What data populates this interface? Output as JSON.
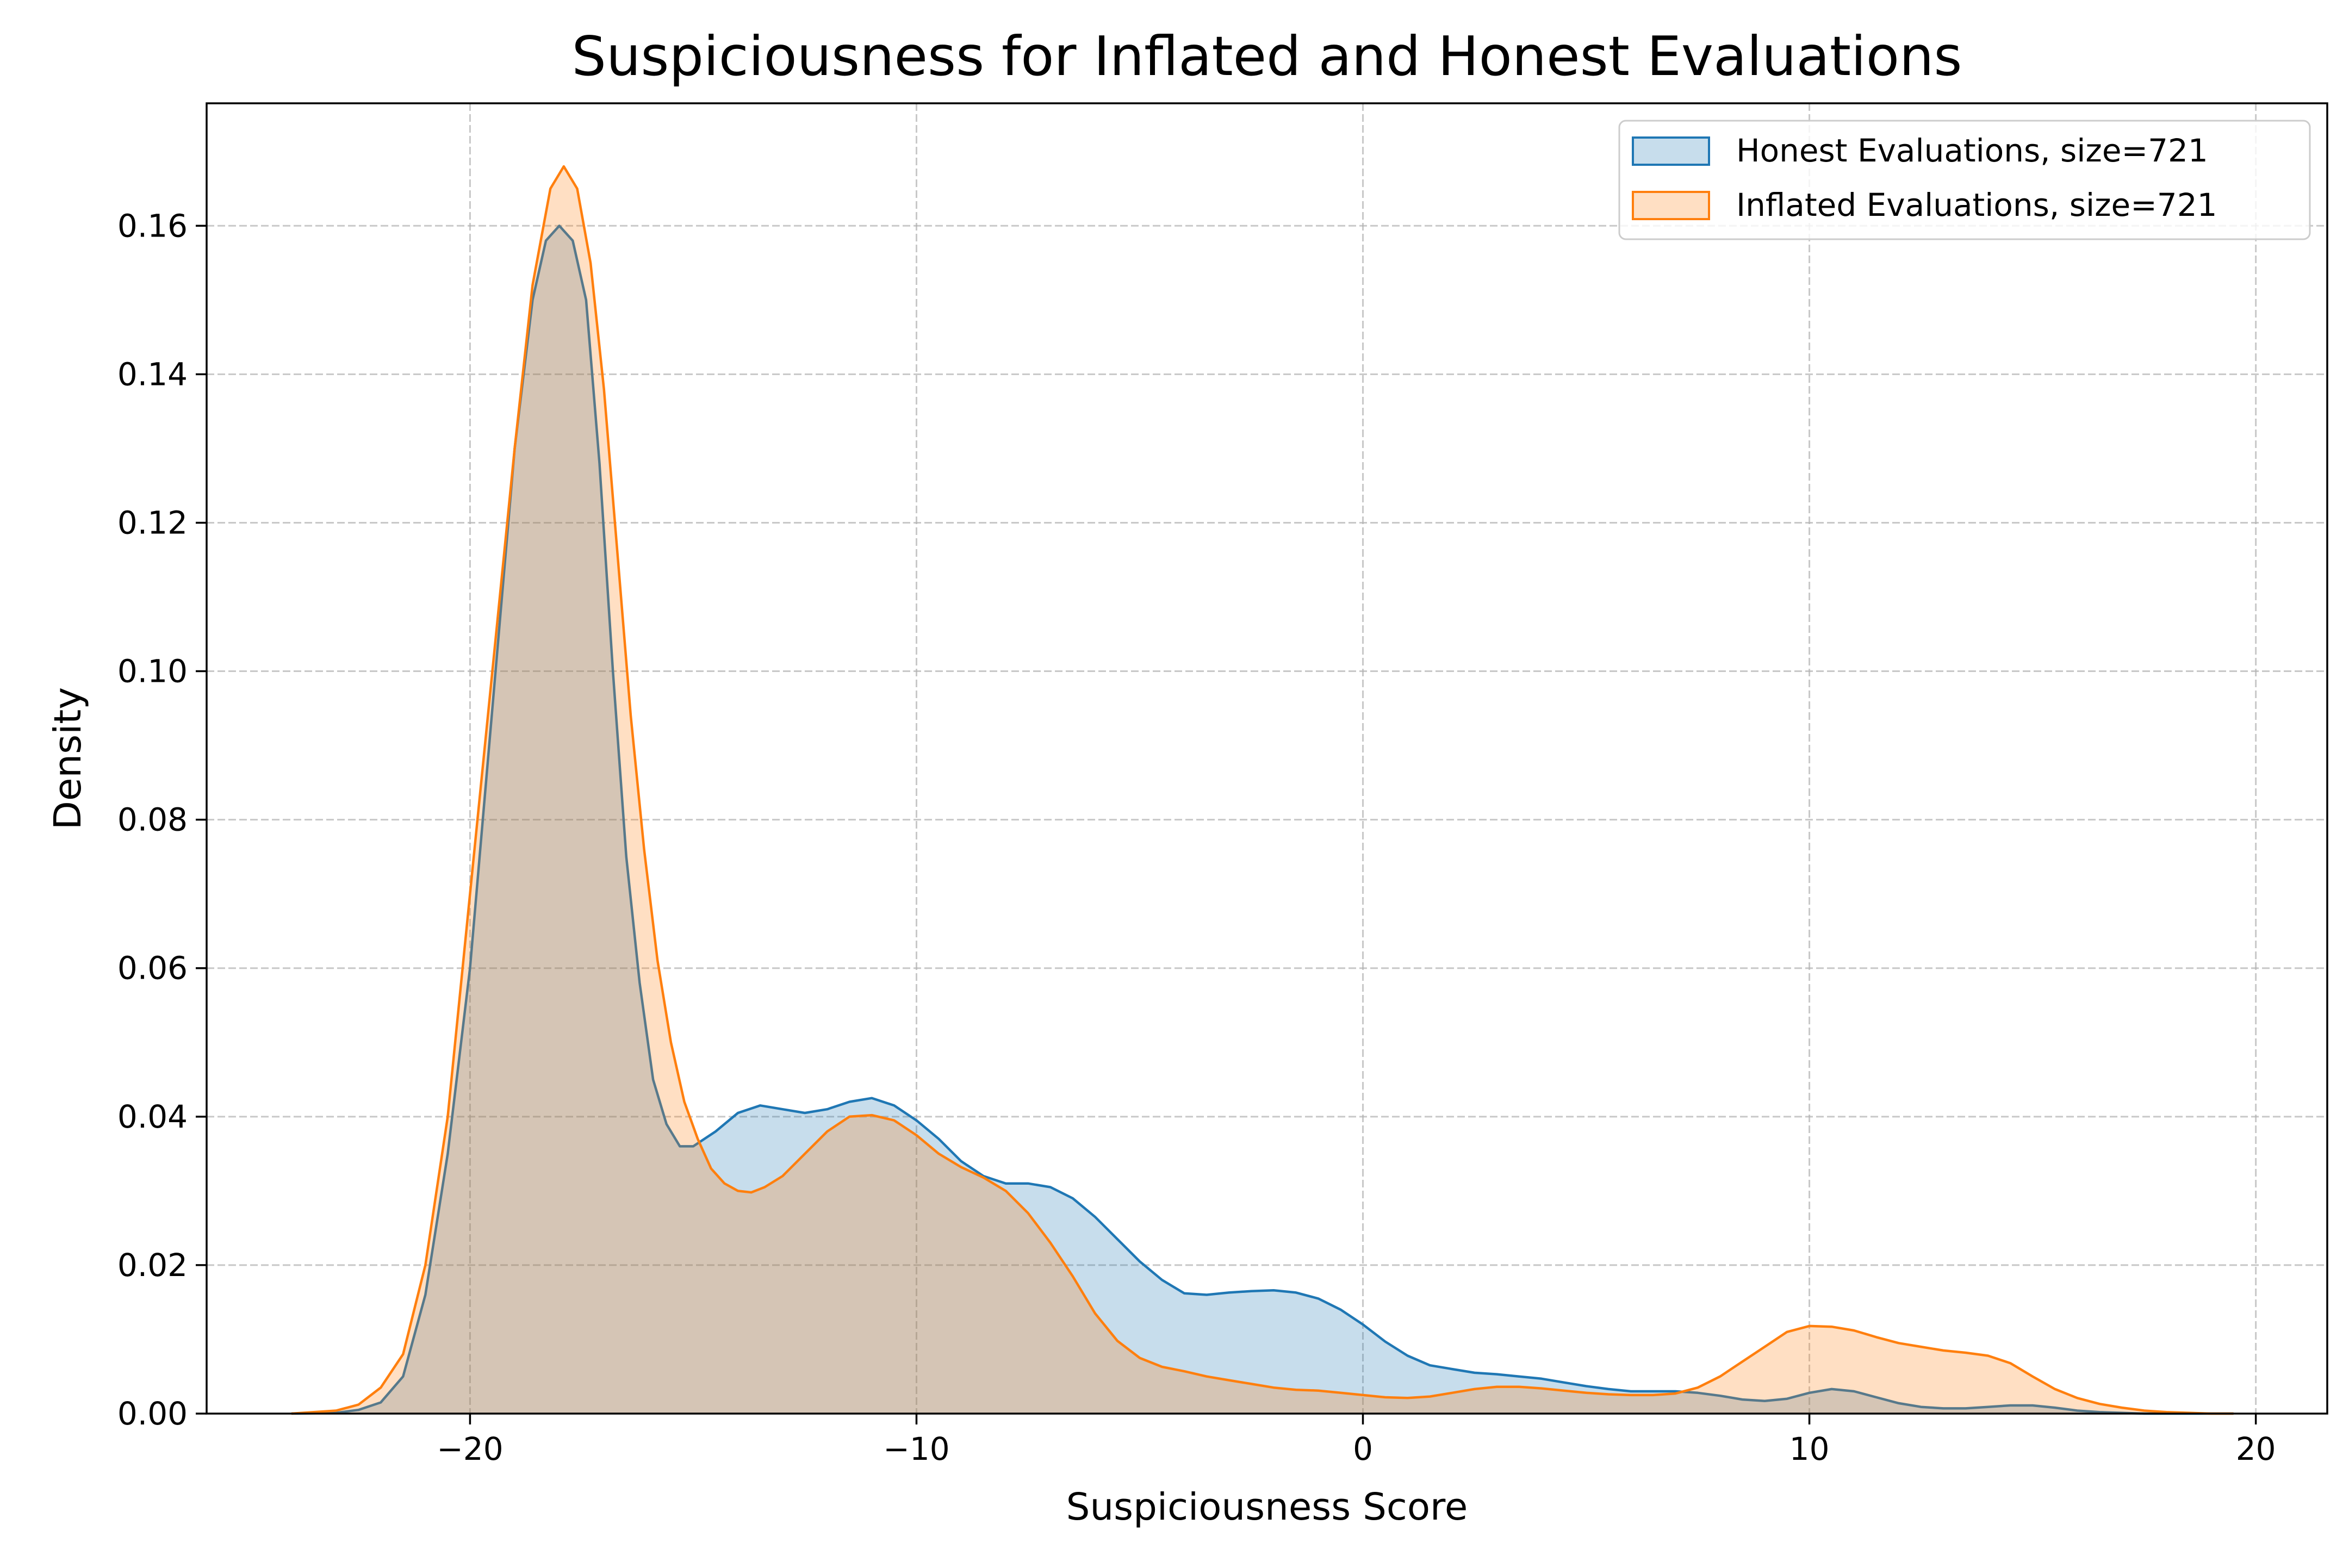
{
  "chart_data": {
    "type": "area",
    "title": "Suspiciousness for Inflated and Honest Evaluations",
    "xlabel": "Suspiciousness Score",
    "ylabel": "Density",
    "xlim": [
      -25.9,
      21.6
    ],
    "ylim": [
      0,
      0.1765
    ],
    "xticks": [
      {
        "value": -20,
        "label": "−20"
      },
      {
        "value": -10,
        "label": "−10"
      },
      {
        "value": 0,
        "label": "0"
      },
      {
        "value": 10,
        "label": "10"
      },
      {
        "value": 20,
        "label": "20"
      }
    ],
    "yticks": [
      {
        "value": 0,
        "label": "0.00"
      },
      {
        "value": 0.02,
        "label": "0.02"
      },
      {
        "value": 0.04,
        "label": "0.04"
      },
      {
        "value": 0.06,
        "label": "0.06"
      },
      {
        "value": 0.08,
        "label": "0.08"
      },
      {
        "value": 0.1,
        "label": "0.10"
      },
      {
        "value": 0.12,
        "label": "0.12"
      },
      {
        "value": 0.14,
        "label": "0.14"
      },
      {
        "value": 0.16,
        "label": "0.16"
      }
    ],
    "grid": true,
    "legend_position": "top-right",
    "series": [
      {
        "name": "Honest Evaluations, size=721",
        "color": "#1f77b4",
        "fill_opacity": 0.25,
        "x": [
          -24,
          -23,
          -22.5,
          -22,
          -21.5,
          -21,
          -20.5,
          -20,
          -19.5,
          -19,
          -18.6,
          -18.3,
          -18,
          -17.7,
          -17.4,
          -17.1,
          -16.8,
          -16.5,
          -16.2,
          -15.9,
          -15.6,
          -15.3,
          -15,
          -14.5,
          -14,
          -13.5,
          -13,
          -12.5,
          -12,
          -11.5,
          -11,
          -10.5,
          -10,
          -9.5,
          -9,
          -8.5,
          -8,
          -7.5,
          -7,
          -6.5,
          -6,
          -5.5,
          -5,
          -4.5,
          -4,
          -3.5,
          -3,
          -2.5,
          -2,
          -1.5,
          -1,
          -0.5,
          0,
          0.5,
          1,
          1.5,
          2,
          2.5,
          3,
          3.5,
          4,
          4.5,
          5,
          5.5,
          6,
          6.5,
          7,
          7.5,
          8,
          8.5,
          9,
          9.5,
          10,
          10.5,
          11,
          11.5,
          12,
          12.5,
          13,
          13.5,
          14,
          14.5,
          15,
          15.5,
          16,
          16.5,
          17,
          17.5,
          18,
          18.5,
          19,
          19.5
        ],
        "y": [
          0,
          0.0001,
          0.0005,
          0.0015,
          0.005,
          0.016,
          0.035,
          0.06,
          0.095,
          0.13,
          0.15,
          0.158,
          0.16,
          0.158,
          0.15,
          0.128,
          0.1,
          0.075,
          0.058,
          0.045,
          0.039,
          0.036,
          0.036,
          0.038,
          0.0405,
          0.0415,
          0.041,
          0.0405,
          0.041,
          0.042,
          0.0425,
          0.0415,
          0.0395,
          0.037,
          0.034,
          0.032,
          0.031,
          0.031,
          0.0305,
          0.029,
          0.0265,
          0.0235,
          0.0205,
          0.018,
          0.0162,
          0.016,
          0.0163,
          0.0165,
          0.0166,
          0.0163,
          0.0155,
          0.014,
          0.012,
          0.0097,
          0.0078,
          0.0065,
          0.006,
          0.0055,
          0.0053,
          0.005,
          0.0047,
          0.0042,
          0.0037,
          0.0033,
          0.003,
          0.003,
          0.003,
          0.0028,
          0.0024,
          0.0019,
          0.0017,
          0.002,
          0.0028,
          0.0033,
          0.003,
          0.0022,
          0.0014,
          0.0009,
          0.0007,
          0.0007,
          0.0009,
          0.0011,
          0.0011,
          0.0008,
          0.0004,
          0.0002,
          0.0001,
          0,
          0,
          0,
          0,
          0
        ]
      },
      {
        "name": "Inflated Evaluations, size=721",
        "color": "#ff7f0e",
        "fill_opacity": 0.25,
        "x": [
          -24,
          -23,
          -22.5,
          -22,
          -21.5,
          -21,
          -20.5,
          -20,
          -19.5,
          -19,
          -18.6,
          -18.2,
          -17.9,
          -17.6,
          -17.3,
          -17,
          -16.7,
          -16.4,
          -16.1,
          -15.8,
          -15.5,
          -15.2,
          -14.9,
          -14.6,
          -14.3,
          -14,
          -13.7,
          -13.4,
          -13,
          -12.5,
          -12,
          -11.5,
          -11,
          -10.5,
          -10,
          -9.5,
          -9,
          -8.5,
          -8,
          -7.5,
          -7,
          -6.5,
          -6,
          -5.5,
          -5,
          -4.5,
          -4,
          -3.5,
          -3,
          -2.5,
          -2,
          -1.5,
          -1,
          -0.5,
          0,
          0.5,
          1,
          1.5,
          2,
          2.5,
          3,
          3.5,
          4,
          4.5,
          5,
          5.5,
          6,
          6.5,
          7,
          7.5,
          8,
          8.5,
          9,
          9.5,
          10,
          10.5,
          11,
          11.5,
          12,
          12.5,
          13,
          13.5,
          14,
          14.5,
          15,
          15.5,
          16,
          16.5,
          17,
          17.5,
          18,
          18.5,
          19,
          19.5
        ],
        "y": [
          0,
          0.0004,
          0.0012,
          0.0035,
          0.008,
          0.02,
          0.04,
          0.07,
          0.1,
          0.13,
          0.152,
          0.165,
          0.168,
          0.165,
          0.155,
          0.138,
          0.116,
          0.094,
          0.076,
          0.061,
          0.05,
          0.042,
          0.037,
          0.033,
          0.031,
          0.03,
          0.0298,
          0.0305,
          0.032,
          0.035,
          0.038,
          0.04,
          0.0402,
          0.0395,
          0.0375,
          0.035,
          0.0332,
          0.0318,
          0.03,
          0.027,
          0.023,
          0.0185,
          0.0135,
          0.0098,
          0.0075,
          0.0063,
          0.0057,
          0.005,
          0.0045,
          0.004,
          0.0035,
          0.0032,
          0.0031,
          0.0028,
          0.0025,
          0.0022,
          0.0021,
          0.0023,
          0.0028,
          0.0033,
          0.0036,
          0.0036,
          0.0034,
          0.0031,
          0.0028,
          0.0026,
          0.0025,
          0.0025,
          0.0027,
          0.0035,
          0.005,
          0.007,
          0.009,
          0.011,
          0.0118,
          0.0117,
          0.0112,
          0.0103,
          0.0095,
          0.009,
          0.0085,
          0.0082,
          0.0078,
          0.0068,
          0.005,
          0.0033,
          0.0021,
          0.0013,
          0.0008,
          0.0004,
          0.0002,
          0.0001,
          0,
          0
        ]
      }
    ]
  }
}
